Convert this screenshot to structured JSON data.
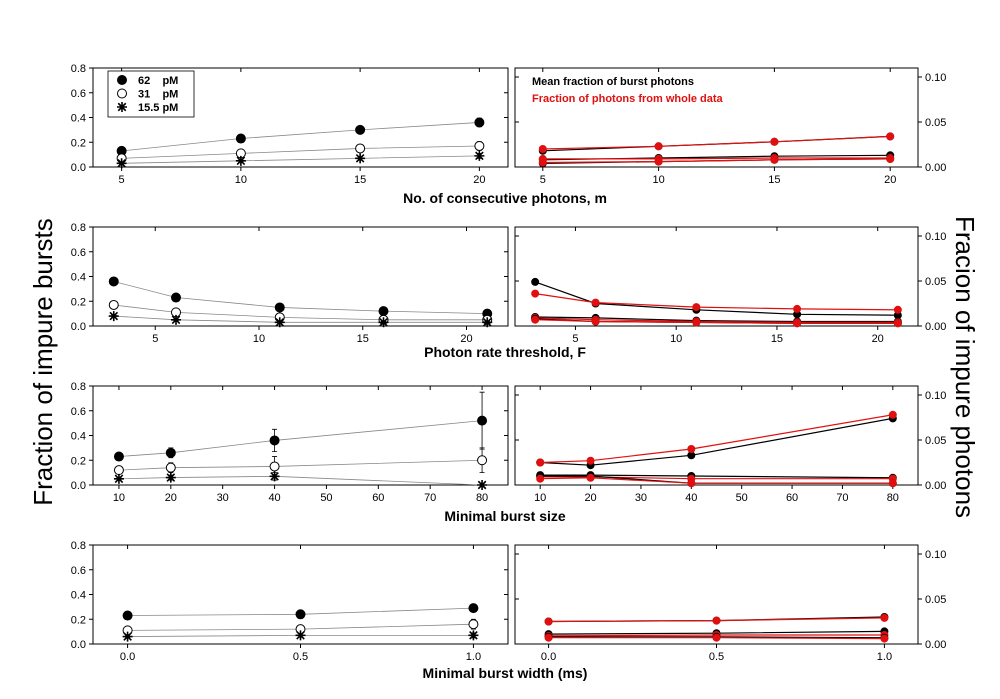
{
  "figure": {
    "left_ylabel": "Fraction of impure bursts",
    "right_ylabel": "Fracion of impure photons"
  },
  "colors": {
    "black": "#000000",
    "red": "#e01010",
    "gray": "#888888"
  },
  "legend_left": [
    {
      "label": "62    pM",
      "marker": "filled-circle"
    },
    {
      "label": "31    pM",
      "marker": "open-circle"
    },
    {
      "label": "15.5 pM",
      "marker": "asterisk"
    }
  ],
  "legend_right": [
    {
      "label": "Mean fraction of burst photons",
      "color": "#000000"
    },
    {
      "label": "Fraction of photons from whole data",
      "color": "#e01010"
    }
  ],
  "chart_data": [
    {
      "type": "scatter",
      "xlabel": "No. of consecutive photons, m",
      "xlim": [
        3.8,
        21.2
      ],
      "xticks": [
        5,
        10,
        15,
        20
      ],
      "x": [
        5,
        10,
        15,
        20
      ],
      "left": {
        "ylim": [
          0,
          0.8
        ],
        "yticks": [
          0.0,
          0.2,
          0.4,
          0.6,
          0.8
        ],
        "series": [
          {
            "name": "62 pM",
            "values": [
              0.13,
              0.23,
              0.3,
              0.36
            ],
            "err": [
              0.015,
              0.02,
              0.03,
              0.035
            ]
          },
          {
            "name": "31 pM",
            "values": [
              0.07,
              0.11,
              0.15,
              0.17
            ],
            "err": [
              0.015,
              0.02,
              0.03,
              0.035
            ]
          },
          {
            "name": "15.5 pM",
            "values": [
              0.03,
              0.05,
              0.07,
              0.09
            ],
            "err": [
              0.01,
              0.01,
              0.015,
              0.02
            ]
          }
        ]
      },
      "right": {
        "ylim": [
          0,
          0.11
        ],
        "yticks": [
          0.0,
          0.05,
          0.1
        ],
        "series": [
          {
            "name": "62 pM burst photons",
            "color": "black",
            "values": [
              0.018,
              0.023,
              0.028,
              0.034
            ]
          },
          {
            "name": "62 pM whole data",
            "color": "red",
            "values": [
              0.02,
              0.023,
              0.028,
              0.034
            ]
          },
          {
            "name": "31 pM burst photons",
            "color": "black",
            "values": [
              0.008,
              0.01,
              0.012,
              0.013
            ]
          },
          {
            "name": "31 pM whole data",
            "color": "red",
            "values": [
              0.009,
              0.009,
              0.01,
              0.01
            ]
          },
          {
            "name": "15.5 pM burst photons",
            "color": "black",
            "values": [
              0.004,
              0.006,
              0.008,
              0.009
            ]
          },
          {
            "name": "15.5 pM whole data",
            "color": "red",
            "values": [
              0.005,
              0.006,
              0.008,
              0.009
            ]
          }
        ]
      }
    },
    {
      "type": "scatter",
      "xlabel": "Photon rate threshold, F",
      "xlim": [
        2.0,
        22.0
      ],
      "xticks": [
        5,
        10,
        15,
        20
      ],
      "x": [
        3,
        6,
        11,
        16,
        21
      ],
      "left": {
        "ylim": [
          0,
          0.8
        ],
        "yticks": [
          0.0,
          0.2,
          0.4,
          0.6,
          0.8
        ],
        "series": [
          {
            "name": "62 pM",
            "values": [
              0.36,
              0.23,
              0.15,
              0.12,
              0.1
            ],
            "err": [
              0.02,
              0.015,
              0.01,
              0.01,
              0.01
            ]
          },
          {
            "name": "31 pM",
            "values": [
              0.17,
              0.11,
              0.07,
              0.05,
              0.05
            ],
            "err": [
              0.02,
              0.015,
              0.01,
              0.01,
              0.01
            ]
          },
          {
            "name": "15.5 pM",
            "values": [
              0.08,
              0.05,
              0.03,
              0.03,
              0.03
            ],
            "err": [
              0.01,
              0.01,
              0.01,
              0.01,
              0.01
            ]
          }
        ]
      },
      "right": {
        "ylim": [
          0,
          0.11
        ],
        "yticks": [
          0.0,
          0.05,
          0.1
        ],
        "series": [
          {
            "name": "62 pM burst photons",
            "color": "black",
            "values": [
              0.049,
              0.025,
              0.018,
              0.013,
              0.012
            ]
          },
          {
            "name": "62 pM whole data",
            "color": "red",
            "values": [
              0.036,
              0.026,
              0.021,
              0.019,
              0.018
            ]
          },
          {
            "name": "31 pM burst photons",
            "color": "black",
            "values": [
              0.01,
              0.009,
              0.006,
              0.005,
              0.005
            ]
          },
          {
            "name": "31 pM whole data",
            "color": "red",
            "values": [
              0.009,
              0.007,
              0.005,
              0.004,
              0.004
            ]
          },
          {
            "name": "15.5 pM burst photons",
            "color": "black",
            "values": [
              0.008,
              0.005,
              0.004,
              0.003,
              0.003
            ]
          },
          {
            "name": "15.5 pM whole data",
            "color": "red",
            "values": [
              0.007,
              0.005,
              0.004,
              0.003,
              0.003
            ]
          }
        ]
      }
    },
    {
      "type": "scatter",
      "xlabel": "Minimal burst size",
      "xlim": [
        5,
        85
      ],
      "xticks": [
        10,
        20,
        30,
        40,
        50,
        60,
        70,
        80
      ],
      "x": [
        10,
        20,
        40,
        80
      ],
      "left": {
        "ylim": [
          0,
          0.8
        ],
        "yticks": [
          0.0,
          0.2,
          0.4,
          0.6,
          0.8
        ],
        "series": [
          {
            "name": "62 pM",
            "values": [
              0.23,
              0.26,
              0.36,
              0.52
            ],
            "err": [
              0.02,
              0.04,
              0.09,
              0.23
            ]
          },
          {
            "name": "31 pM",
            "values": [
              0.12,
              0.14,
              0.15,
              0.2
            ],
            "err": [
              0.02,
              0.04,
              0.08,
              0.1
            ]
          },
          {
            "name": "15.5 pM",
            "values": [
              0.05,
              0.06,
              0.07,
              0.0
            ],
            "err": [
              0.01,
              0.02,
              0.03,
              0.0
            ]
          }
        ]
      },
      "right": {
        "ylim": [
          0,
          0.11
        ],
        "yticks": [
          0.0,
          0.05,
          0.1
        ],
        "series": [
          {
            "name": "62 pM burst photons",
            "color": "black",
            "values": [
              0.025,
              0.022,
              0.033,
              0.074
            ]
          },
          {
            "name": "62 pM whole data",
            "color": "red",
            "values": [
              0.025,
              0.027,
              0.04,
              0.078
            ]
          },
          {
            "name": "31 pM burst photons",
            "color": "black",
            "values": [
              0.011,
              0.011,
              0.01,
              0.008
            ]
          },
          {
            "name": "31 pM whole data",
            "color": "red",
            "values": [
              0.009,
              0.009,
              0.007,
              0.007
            ]
          },
          {
            "name": "15.5 pM burst photons",
            "color": "black",
            "values": [
              0.01,
              0.01,
              0.002,
              0.002
            ]
          },
          {
            "name": "15.5 pM whole data",
            "color": "red",
            "values": [
              0.007,
              0.008,
              0.002,
              0.002
            ]
          }
        ]
      }
    },
    {
      "type": "scatter",
      "xlabel": "Minimal burst width (ms)",
      "xlim": [
        -0.1,
        1.1
      ],
      "xticks": [
        0.0,
        0.5,
        1.0
      ],
      "x": [
        0.0,
        0.5,
        1.0
      ],
      "left": {
        "ylim": [
          0,
          0.8
        ],
        "yticks": [
          0.0,
          0.2,
          0.4,
          0.6,
          0.8
        ],
        "series": [
          {
            "name": "62 pM",
            "values": [
              0.23,
              0.24,
              0.29
            ],
            "err": [
              0.015,
              0.02,
              0.03
            ]
          },
          {
            "name": "31 pM",
            "values": [
              0.11,
              0.12,
              0.16
            ],
            "err": [
              0.015,
              0.02,
              0.04
            ]
          },
          {
            "name": "15.5 pM",
            "values": [
              0.06,
              0.07,
              0.07
            ],
            "err": [
              0.01,
              0.015,
              0.02
            ]
          }
        ]
      },
      "right": {
        "ylim": [
          0,
          0.11
        ],
        "yticks": [
          0.0,
          0.05,
          0.1
        ],
        "series": [
          {
            "name": "62 pM burst photons",
            "color": "black",
            "values": [
              0.025,
              0.026,
              0.03
            ]
          },
          {
            "name": "62 pM whole data",
            "color": "red",
            "values": [
              0.025,
              0.026,
              0.029
            ]
          },
          {
            "name": "31 pM burst photons",
            "color": "black",
            "values": [
              0.011,
              0.012,
              0.014
            ]
          },
          {
            "name": "31 pM whole data",
            "color": "red",
            "values": [
              0.009,
              0.01,
              0.01
            ]
          },
          {
            "name": "15.5 pM burst photons",
            "color": "black",
            "values": [
              0.008,
              0.008,
              0.007
            ]
          },
          {
            "name": "15.5 pM whole data",
            "color": "red",
            "values": [
              0.007,
              0.007,
              0.006
            ]
          }
        ]
      }
    }
  ]
}
